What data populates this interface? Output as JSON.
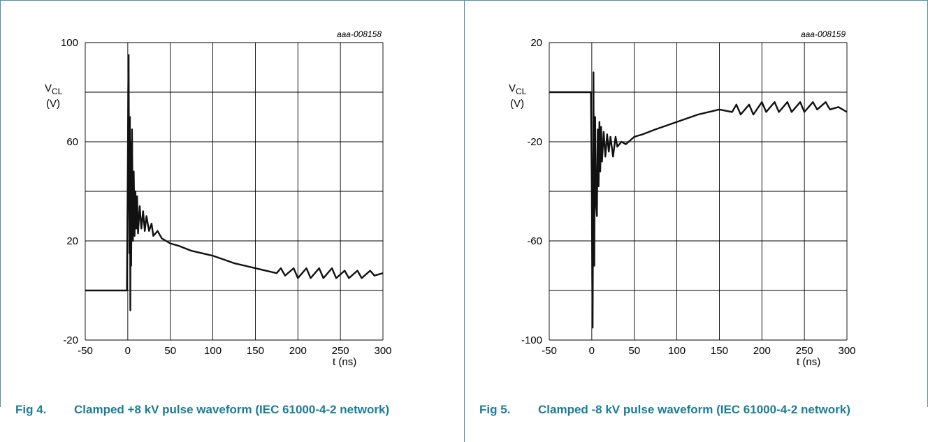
{
  "chart_data": [
    {
      "type": "line",
      "id_label": "aaa-008158",
      "ylabel_main": "V",
      "ylabel_sub": "CL",
      "ylabel_unit": "(V)",
      "xlabel": "t (ns)",
      "xlim": [
        -50,
        300
      ],
      "ylim": [
        -20,
        100
      ],
      "xticks": [
        -50,
        0,
        50,
        100,
        150,
        200,
        250,
        300
      ],
      "yticks_labeled": [
        -20,
        20,
        60,
        100
      ],
      "ygrid": [
        -20,
        0,
        20,
        40,
        60,
        80,
        100
      ],
      "grid": true,
      "series": [
        {
          "values": [
            [
              -50,
              0
            ],
            [
              -5,
              0
            ],
            [
              -1,
              0
            ],
            [
              0,
              50
            ],
            [
              0.5,
              80
            ],
            [
              1,
              95
            ],
            [
              1.5,
              40
            ],
            [
              2,
              15
            ],
            [
              2.5,
              70
            ],
            [
              3,
              -8
            ],
            [
              3.5,
              60
            ],
            [
              4,
              10
            ],
            [
              5,
              65
            ],
            [
              6,
              20
            ],
            [
              7,
              48
            ],
            [
              8,
              22
            ],
            [
              9,
              40
            ],
            [
              10,
              25
            ],
            [
              11,
              38
            ],
            [
              12,
              23
            ],
            [
              14,
              34
            ],
            [
              16,
              25
            ],
            [
              18,
              32
            ],
            [
              20,
              24
            ],
            [
              22,
              30
            ],
            [
              25,
              24
            ],
            [
              28,
              27
            ],
            [
              30,
              22
            ],
            [
              35,
              24
            ],
            [
              40,
              21
            ],
            [
              50,
              19
            ],
            [
              60,
              18
            ],
            [
              75,
              16
            ],
            [
              100,
              14
            ],
            [
              125,
              11
            ],
            [
              150,
              9
            ],
            [
              175,
              7
            ],
            [
              180,
              9
            ],
            [
              185,
              6
            ],
            [
              195,
              9
            ],
            [
              200,
              5
            ],
            [
              210,
              9
            ],
            [
              215,
              5
            ],
            [
              225,
              9
            ],
            [
              230,
              5
            ],
            [
              240,
              9
            ],
            [
              245,
              5
            ],
            [
              255,
              8
            ],
            [
              260,
              5
            ],
            [
              270,
              8
            ],
            [
              275,
              5
            ],
            [
              285,
              8
            ],
            [
              290,
              6
            ],
            [
              300,
              7
            ]
          ]
        }
      ]
    },
    {
      "type": "line",
      "id_label": "aaa-008159",
      "ylabel_main": "V",
      "ylabel_sub": "CL",
      "ylabel_unit": "(V)",
      "xlabel": "t (ns)",
      "xlim": [
        -50,
        300
      ],
      "ylim": [
        -100,
        20
      ],
      "xticks": [
        -50,
        0,
        50,
        100,
        150,
        200,
        250,
        300
      ],
      "yticks_labeled": [
        -100,
        -60,
        -20,
        20
      ],
      "ygrid": [
        -100,
        -80,
        -60,
        -40,
        -20,
        0,
        20
      ],
      "grid": true,
      "series": [
        {
          "values": [
            [
              -50,
              0
            ],
            [
              -3,
              0
            ],
            [
              -1,
              0
            ],
            [
              0,
              -40
            ],
            [
              0.5,
              -75
            ],
            [
              1,
              -95
            ],
            [
              1.5,
              -50
            ],
            [
              2,
              8
            ],
            [
              2.5,
              -60
            ],
            [
              3,
              -70
            ],
            [
              3.5,
              -20
            ],
            [
              4,
              -10
            ],
            [
              5,
              -45
            ],
            [
              6,
              -50
            ],
            [
              7,
              -15
            ],
            [
              8,
              -38
            ],
            [
              9,
              -12
            ],
            [
              10,
              -32
            ],
            [
              11,
              -14
            ],
            [
              12,
              -28
            ],
            [
              14,
              -16
            ],
            [
              16,
              -26
            ],
            [
              18,
              -17
            ],
            [
              20,
              -24
            ],
            [
              22,
              -18
            ],
            [
              25,
              -26
            ],
            [
              28,
              -18
            ],
            [
              30,
              -22
            ],
            [
              35,
              -20
            ],
            [
              40,
              -21
            ],
            [
              50,
              -18
            ],
            [
              60,
              -17
            ],
            [
              75,
              -15
            ],
            [
              100,
              -12
            ],
            [
              125,
              -9
            ],
            [
              150,
              -7
            ],
            [
              165,
              -8
            ],
            [
              170,
              -5
            ],
            [
              175,
              -9
            ],
            [
              185,
              -5
            ],
            [
              190,
              -9
            ],
            [
              200,
              -4
            ],
            [
              205,
              -8
            ],
            [
              215,
              -4
            ],
            [
              220,
              -8
            ],
            [
              230,
              -4
            ],
            [
              235,
              -8
            ],
            [
              245,
              -4
            ],
            [
              250,
              -8
            ],
            [
              260,
              -4
            ],
            [
              265,
              -7
            ],
            [
              275,
              -4
            ],
            [
              280,
              -7
            ],
            [
              290,
              -6
            ],
            [
              300,
              -8
            ]
          ]
        }
      ]
    }
  ],
  "captions": [
    {
      "number": "Fig 4.",
      "text": "Clamped +8 kV pulse waveform (IEC 61000-4-2 network)"
    },
    {
      "number": "Fig 5.",
      "text": "Clamped -8 kV pulse waveform (IEC 61000-4-2 network)"
    }
  ]
}
